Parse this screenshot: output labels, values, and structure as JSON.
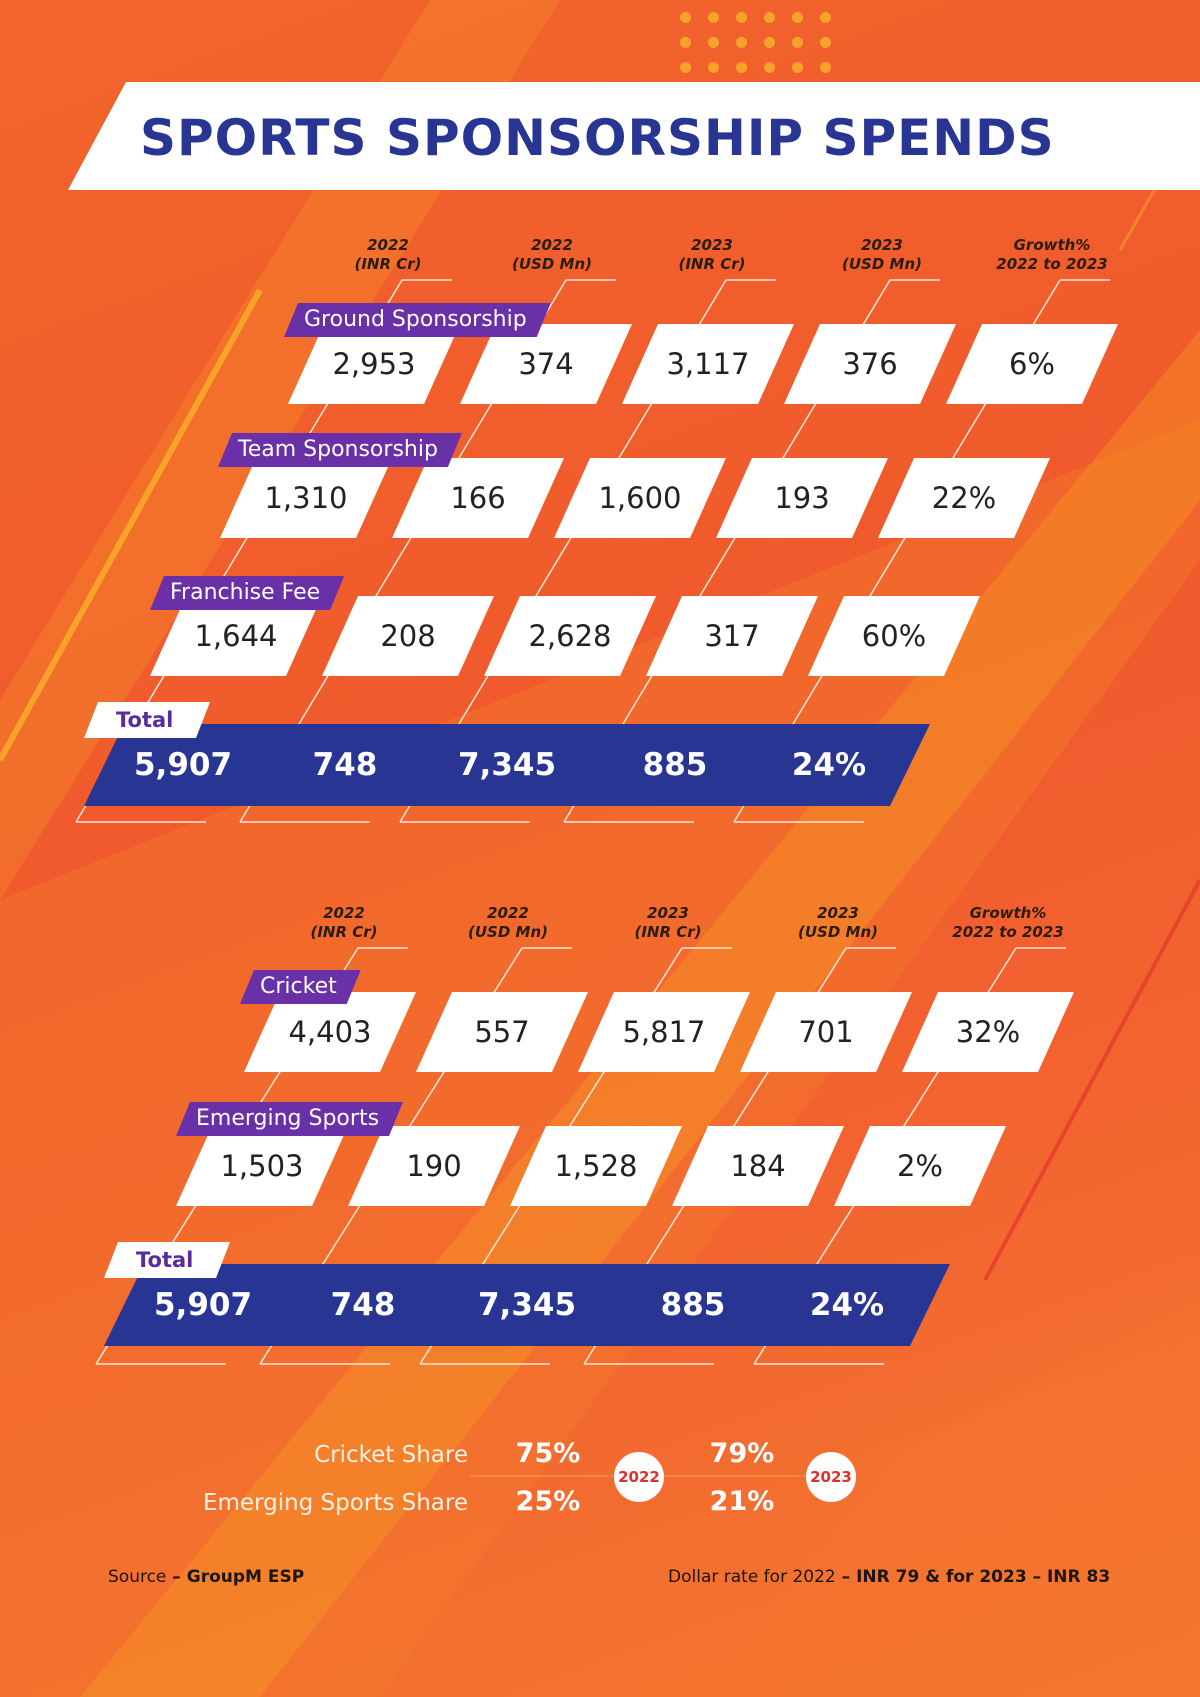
{
  "title": "SPORTS SPONSORSHIP SPENDS",
  "colors": {
    "background": "#f15a2c",
    "navy": "#283593",
    "purple": "#6a30a8",
    "white": "#ffffff",
    "accent_orange": "#f7a22b"
  },
  "column_headers": [
    {
      "line1": "2022",
      "line2": "(INR Cr)"
    },
    {
      "line1": "2022",
      "line2": "(USD Mn)"
    },
    {
      "line1": "2023",
      "line2": "(INR Cr)"
    },
    {
      "line1": "2023",
      "line2": "(USD Mn)"
    },
    {
      "line1": "Growth%",
      "line2": "2022 to 2023"
    }
  ],
  "chart_data": [
    {
      "type": "table",
      "columns": [
        "2022 (INR Cr)",
        "2022 (USD Mn)",
        "2023 (INR Cr)",
        "2023 (USD Mn)",
        "Growth% 2022 to 2023"
      ],
      "rows": [
        {
          "label": "Ground Sponsorship",
          "values": [
            "2,953",
            "374",
            "3,117",
            "376",
            "6%"
          ]
        },
        {
          "label": "Team Sponsorship",
          "values": [
            "1,310",
            "166",
            "1,600",
            "193",
            "22%"
          ]
        },
        {
          "label": "Franchise Fee",
          "values": [
            "1,644",
            "208",
            "2,628",
            "317",
            "60%"
          ]
        }
      ],
      "total": {
        "label": "Total",
        "values": [
          "5,907",
          "748",
          "7,345",
          "885",
          "24%"
        ]
      }
    },
    {
      "type": "table",
      "columns": [
        "2022 (INR Cr)",
        "2022 (USD Mn)",
        "2023 (INR Cr)",
        "2023 (USD Mn)",
        "Growth% 2022 to 2023"
      ],
      "rows": [
        {
          "label": "Cricket",
          "values": [
            "4,403",
            "557",
            "5,817",
            "701",
            "32%"
          ]
        },
        {
          "label": "Emerging Sports",
          "values": [
            "1,503",
            "190",
            "1,528",
            "184",
            "2%"
          ]
        }
      ],
      "total": {
        "label": "Total",
        "values": [
          "5,907",
          "748",
          "7,345",
          "885",
          "24%"
        ]
      }
    }
  ],
  "shares": {
    "cricket_label": "Cricket Share",
    "emerging_label": "Emerging Sports Share",
    "year_2022": "2022",
    "year_2023": "2023",
    "cricket_2022": "75%",
    "emerging_2022": "25%",
    "cricket_2023": "79%",
    "emerging_2023": "21%"
  },
  "footer": {
    "source_prefix": "Source",
    "source_dash": " – ",
    "source_name": "GroupM ESP",
    "rate_prefix": "Dollar rate for 2022",
    "rate_part1": " – INR 79 & for 2023 – INR 83"
  }
}
